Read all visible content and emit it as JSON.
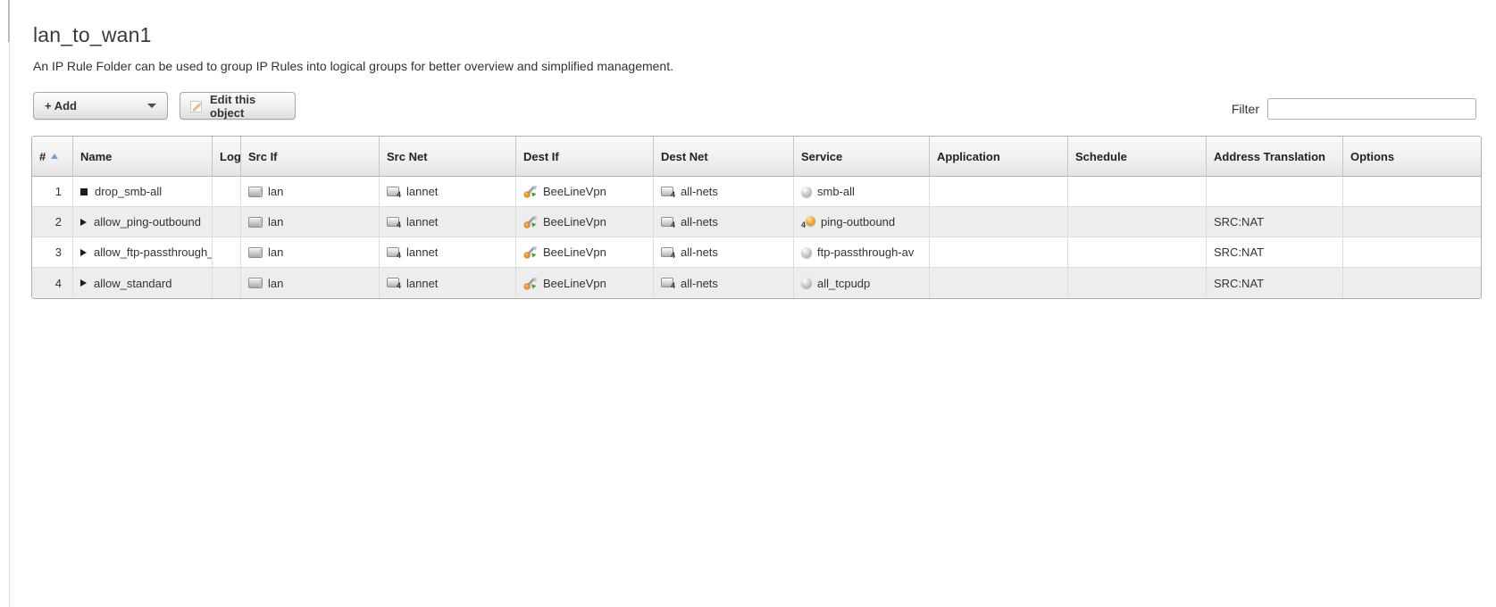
{
  "page": {
    "title": "lan_to_wan1",
    "description": "An IP Rule Folder can be used to group IP Rules into logical groups for better overview and simplified management."
  },
  "toolbar": {
    "add_label": "+ Add",
    "edit_label": "Edit this object",
    "filter_label": "Filter",
    "filter_value": ""
  },
  "icons": {
    "sort-ascending-icon": "▲ blue-gray triangle on # column",
    "dropdown-caret-icon": "▼",
    "edit-pencil-icon": "white sheet with orange pencil",
    "drop-action-icon": "■ black square (drop rule)",
    "allow-action-icon": "▶ black triangle (allow rule)",
    "ethernet-interface-icon": "small silver interface box",
    "ipv4-network-icon": "silver network box with subscript 4",
    "ipsec-interface-icon": "gray tunnel arrows with green arrow and orange globe",
    "service-icon": "gray ball",
    "ping-service-icon": "orange ball with subscript 4"
  },
  "colors": {
    "sort_arrow": "#7ba1c7",
    "row_alt_background": "#ededed",
    "header_text": "#222222",
    "ping_ball": "#f0ad4e",
    "vpn_green": "#3f9e3f",
    "vpn_orange": "#e89b3c"
  },
  "table": {
    "columns": [
      {
        "label": "#",
        "sorted": "ascending"
      },
      {
        "label": "Name"
      },
      {
        "label": "Log"
      },
      {
        "label": "Src If"
      },
      {
        "label": "Src Net"
      },
      {
        "label": "Dest If"
      },
      {
        "label": "Dest Net"
      },
      {
        "label": "Service"
      },
      {
        "label": "Application"
      },
      {
        "label": "Schedule"
      },
      {
        "label": "Address Translation"
      },
      {
        "label": "Options"
      }
    ],
    "rows": [
      {
        "num": "1",
        "name": "drop_smb-all",
        "name_icon": "drop-action-icon",
        "log": "",
        "src_if": "lan",
        "src_if_icon": "ethernet-interface-icon",
        "src_net": "lannet",
        "src_net_icon": "ipv4-network-icon",
        "dest_if": "BeeLineVpn",
        "dest_if_icon": "ipsec-interface-icon",
        "dest_net": "all-nets",
        "dest_net_icon": "ipv4-network-icon",
        "service": "smb-all",
        "service_icon": "service-icon",
        "application": "",
        "schedule": "",
        "address_translation": "",
        "options": ""
      },
      {
        "num": "2",
        "name": "allow_ping-outbound",
        "name_icon": "allow-action-icon",
        "log": "",
        "src_if": "lan",
        "src_if_icon": "ethernet-interface-icon",
        "src_net": "lannet",
        "src_net_icon": "ipv4-network-icon",
        "dest_if": "BeeLineVpn",
        "dest_if_icon": "ipsec-interface-icon",
        "dest_net": "all-nets",
        "dest_net_icon": "ipv4-network-icon",
        "service": "ping-outbound",
        "service_icon": "ping-service-icon",
        "application": "",
        "schedule": "",
        "address_translation": "SRC:NAT",
        "options": ""
      },
      {
        "num": "3",
        "name": "allow_ftp-passthrough_",
        "name_icon": "allow-action-icon",
        "log": "",
        "src_if": "lan",
        "src_if_icon": "ethernet-interface-icon",
        "src_net": "lannet",
        "src_net_icon": "ipv4-network-icon",
        "dest_if": "BeeLineVpn",
        "dest_if_icon": "ipsec-interface-icon",
        "dest_net": "all-nets",
        "dest_net_icon": "ipv4-network-icon",
        "service": "ftp-passthrough-av",
        "service_icon": "service-icon",
        "application": "",
        "schedule": "",
        "address_translation": "SRC:NAT",
        "options": ""
      },
      {
        "num": "4",
        "name": "allow_standard",
        "name_icon": "allow-action-icon",
        "log": "",
        "src_if": "lan",
        "src_if_icon": "ethernet-interface-icon",
        "src_net": "lannet",
        "src_net_icon": "ipv4-network-icon",
        "dest_if": "BeeLineVpn",
        "dest_if_icon": "ipsec-interface-icon",
        "dest_net": "all-nets",
        "dest_net_icon": "ipv4-network-icon",
        "service": "all_tcpudp",
        "service_icon": "service-icon",
        "application": "",
        "schedule": "",
        "address_translation": "SRC:NAT",
        "options": ""
      }
    ]
  }
}
